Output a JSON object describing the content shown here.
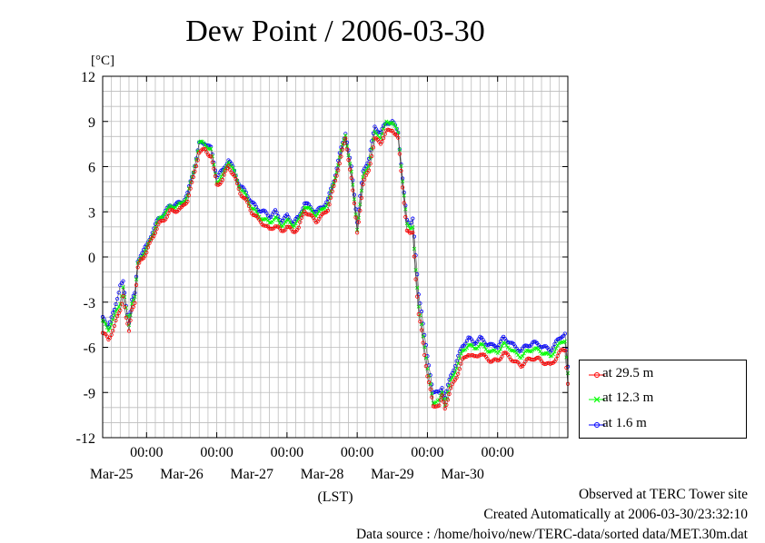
{
  "chart_data": {
    "type": "line",
    "title": "Dew Point / 2006-03-30",
    "ylabel": "[°C]",
    "xlabel": "(LST)",
    "ylim": [
      -12,
      12
    ],
    "yticks": [
      "12",
      "9",
      "6",
      "3",
      "0",
      "-3",
      "-6",
      "-9",
      "-12"
    ],
    "xlim": [
      "2006-03-24 09:00",
      "2006-03-30 24:00"
    ],
    "xticks": [
      {
        "time": "00:00",
        "date": "Mar-25"
      },
      {
        "time": "00:00",
        "date": "Mar-26"
      },
      {
        "time": "00:00",
        "date": "Mar-27"
      },
      {
        "time": "00:00",
        "date": "Mar-28"
      },
      {
        "time": "00:00",
        "date": "Mar-29"
      },
      {
        "time": "00:00",
        "date": "Mar-30"
      }
    ],
    "grid": true,
    "legend_position": "right",
    "series": [
      {
        "name": "at 29.5 m",
        "color": "#ff0000"
      },
      {
        "name": "at 12.3 m",
        "color": "#00ff00"
      },
      {
        "name": "at 1.6 m",
        "color": "#0000ff"
      }
    ],
    "x_hours_from_mar25": [
      -15,
      -13,
      -11,
      -9,
      -8,
      -7,
      -6,
      -5,
      -4,
      -3,
      -2,
      0,
      2,
      4,
      6,
      8,
      10,
      12,
      14,
      16,
      18,
      20,
      22,
      24,
      26,
      28,
      30,
      32,
      34,
      36,
      38,
      40,
      42,
      44,
      46,
      48,
      50,
      52,
      54,
      56,
      58,
      60,
      62,
      64,
      66,
      68,
      70,
      72,
      74,
      76,
      78,
      80,
      82,
      84,
      86,
      88,
      89,
      90,
      91,
      92,
      93,
      94,
      95,
      96,
      97,
      98,
      99,
      100,
      101,
      102,
      104,
      106,
      108,
      110,
      112,
      114,
      116,
      118,
      120,
      122,
      124,
      126,
      128,
      130,
      132,
      134,
      136,
      138,
      140,
      142,
      143,
      144
    ],
    "base_values": [
      -4.5,
      -5.0,
      -4.2,
      -3.0,
      -2.0,
      -3.5,
      -4.5,
      -3.0,
      -2.7,
      -0.5,
      0.0,
      0.5,
      1.5,
      2.3,
      2.7,
      3.2,
      3.3,
      3.4,
      4.0,
      5.5,
      7.3,
      7.4,
      7.0,
      5.0,
      5.3,
      6.3,
      5.5,
      4.5,
      4.0,
      3.3,
      2.8,
      2.5,
      2.2,
      2.5,
      2.0,
      2.3,
      2.0,
      2.3,
      3.3,
      3.0,
      2.7,
      3.0,
      3.5,
      4.8,
      6.5,
      8.0,
      5.5,
      1.8,
      5.0,
      6.0,
      8.0,
      7.8,
      8.5,
      8.7,
      8.0,
      4.0,
      2.0,
      1.8,
      2.0,
      -1.0,
      -3.5,
      -4.5,
      -6.0,
      -7.5,
      -8.5,
      -9.5,
      -9.5,
      -9.6,
      -9.0,
      -9.7,
      -8.5,
      -7.5,
      -6.5,
      -6.0,
      -6.3,
      -6.0,
      -6.3,
      -6.5,
      -6.5,
      -6.0,
      -6.2,
      -6.6,
      -6.8,
      -6.5,
      -6.3,
      -6.4,
      -6.6,
      -6.8,
      -6.3,
      -5.8,
      -5.7,
      -8.0
    ],
    "offsets_29_5m": [
      -0.5,
      -0.5,
      -0.4,
      -0.5,
      -0.5,
      -0.6,
      -0.5,
      -0.4,
      -0.3,
      -0.3,
      -0.2,
      -0.2,
      -0.2,
      -0.2,
      -0.2,
      -0.2,
      -0.2,
      -0.2,
      -0.2,
      -0.3,
      -0.3,
      -0.3,
      -0.3,
      -0.2,
      -0.2,
      -0.2,
      -0.2,
      -0.2,
      -0.3,
      -0.3,
      -0.3,
      -0.3,
      -0.4,
      -0.4,
      -0.3,
      -0.3,
      -0.3,
      -0.4,
      -0.2,
      -0.3,
      -0.3,
      -0.3,
      -0.3,
      -0.2,
      -0.2,
      -0.2,
      -0.2,
      -0.2,
      -0.2,
      -0.2,
      -0.2,
      -0.2,
      -0.2,
      -0.2,
      -0.2,
      -0.3,
      -0.3,
      -0.3,
      -0.3,
      -0.4,
      -0.4,
      -0.4,
      -0.4,
      -0.4,
      -0.4,
      -0.4,
      -0.3,
      -0.3,
      -0.3,
      -0.3,
      -0.3,
      -0.4,
      -0.4,
      -0.4,
      -0.4,
      -0.4,
      -0.4,
      -0.4,
      -0.4,
      -0.4,
      -0.4,
      -0.4,
      -0.4,
      -0.4,
      -0.4,
      -0.4,
      -0.4,
      -0.4,
      -0.4,
      -0.4,
      -0.4,
      -0.4
    ],
    "offsets_12_3m": [
      0.2,
      0.2,
      0.2,
      0.0,
      0.0,
      0.0,
      0.0,
      0.0,
      0.0,
      0.0,
      0.0,
      0.0,
      0.0,
      0.1,
      0.2,
      0.1,
      0.1,
      0.1,
      0.1,
      0.1,
      0.3,
      0.1,
      0.1,
      0.0,
      0.1,
      0.1,
      0.1,
      0.1,
      0.0,
      0.0,
      0.0,
      0.0,
      0.1,
      0.1,
      0.1,
      0.1,
      0.1,
      0.1,
      0.1,
      0.1,
      0.1,
      0.1,
      0.1,
      0.1,
      0.1,
      0.1,
      0.1,
      0.1,
      0.2,
      0.2,
      0.2,
      0.2,
      0.4,
      0.3,
      0.2,
      0.1,
      0.1,
      0.1,
      0.1,
      0.1,
      0.1,
      0.1,
      0.1,
      0.0,
      0.0,
      -0.1,
      -0.1,
      0.0,
      0.0,
      0.0,
      0.2,
      0.2,
      0.2,
      0.2,
      0.2,
      0.2,
      0.2,
      0.2,
      0.2,
      0.2,
      0.2,
      0.2,
      0.2,
      0.2,
      0.2,
      0.2,
      0.2,
      0.2,
      0.2,
      0.2,
      0.2,
      0.2
    ],
    "offsets_1_6m": [
      0.4,
      0.5,
      0.6,
      1.2,
      0.3,
      0.2,
      0.2,
      0.2,
      0.2,
      0.2,
      0.2,
      0.2,
      0.2,
      0.2,
      0.2,
      0.2,
      0.2,
      0.2,
      0.2,
      0.2,
      0.2,
      0.2,
      0.2,
      0.4,
      0.4,
      0.2,
      0.2,
      0.2,
      0.3,
      0.3,
      0.4,
      0.5,
      0.5,
      0.5,
      0.4,
      0.4,
      0.3,
      0.3,
      0.3,
      0.3,
      0.3,
      0.3,
      0.3,
      0.3,
      0.3,
      0.3,
      0.4,
      0.6,
      0.6,
      0.6,
      0.6,
      0.5,
      0.4,
      0.3,
      0.3,
      0.2,
      0.4,
      0.4,
      0.6,
      1.0,
      1.0,
      1.0,
      0.8,
      0.8,
      0.7,
      0.6,
      0.5,
      0.5,
      0.4,
      0.4,
      0.6,
      0.6,
      0.6,
      0.6,
      0.6,
      0.6,
      0.6,
      0.6,
      0.6,
      0.6,
      0.6,
      0.6,
      0.6,
      0.6,
      0.6,
      0.6,
      0.6,
      0.6,
      0.6,
      0.6,
      0.6,
      0.6
    ]
  },
  "footer": {
    "line1": "Observed at TERC Tower site",
    "line2": "Created Automatically at 2006-03-30/23:32:10",
    "line3": "Data source : /home/hoivo/new/TERC-data/sorted  data/MET.30m.dat"
  }
}
